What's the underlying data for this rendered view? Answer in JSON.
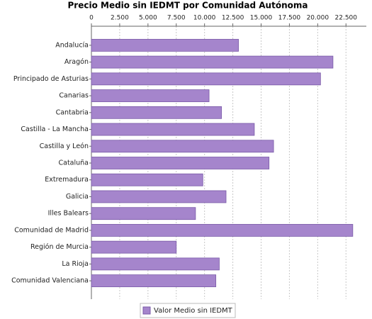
{
  "chart_data": {
    "type": "bar",
    "orientation": "horizontal",
    "title": "Precio Medio sin IEDMT por Comunidad Autónoma",
    "categories": [
      "Andalucía",
      "Aragón",
      "Principado de Asturias",
      "Canarias",
      "Cantabria",
      "Castilla - La Mancha",
      "Castilla y León",
      "Cataluña",
      "Extremadura",
      "Galicia",
      "Illes Balears",
      "Comunidad de Madrid",
      "Región de Murcia",
      "La Rioja",
      "Comunidad Valenciana"
    ],
    "series": [
      {
        "name": "Valor Medio sin IEDMT",
        "color": "#a585cc",
        "values": [
          13000,
          21350,
          20250,
          10400,
          11500,
          14400,
          16100,
          15700,
          9850,
          11900,
          9200,
          23100,
          7500,
          11300,
          11000
        ]
      }
    ],
    "xlim": [
      0,
      24300
    ],
    "xticks": [
      0,
      {
        "value": 2500,
        "label": "2.500"
      },
      {
        "value": 5000,
        "label": "5.000"
      },
      {
        "value": 7500,
        "label": "7.500"
      },
      {
        "value": 10000,
        "label": "10.000"
      },
      {
        "value": 12500,
        "label": "12.500"
      },
      {
        "value": 15000,
        "label": "15.000"
      },
      {
        "value": 17500,
        "label": "17.500"
      },
      {
        "value": 20000,
        "label": "20.000"
      },
      {
        "value": 22500,
        "label": "22.500"
      }
    ],
    "grid": true,
    "legend": "bottom"
  }
}
